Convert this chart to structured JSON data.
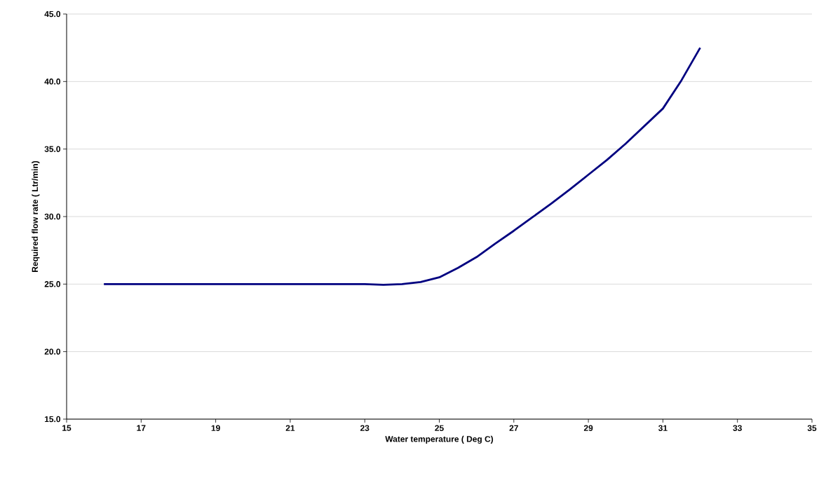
{
  "chart_data": {
    "type": "line",
    "xlabel": "Water temperature ( Deg C)",
    "ylabel": "Required flow rate ( Ltr/min)",
    "x": [
      16,
      17,
      18,
      19,
      20,
      21,
      22,
      23,
      23.5,
      24,
      24.5,
      25,
      25.5,
      26,
      26.5,
      27,
      27.5,
      28,
      28.5,
      29,
      29.5,
      30,
      30.5,
      31,
      31.5,
      32
    ],
    "series": [
      {
        "color": "#000080",
        "values": [
          25,
          25,
          25,
          25,
          25,
          25,
          25,
          25,
          24.95,
          25.0,
          25.15,
          25.5,
          26.2,
          27.0,
          28.0,
          28.95,
          29.95,
          30.95,
          32.0,
          33.1,
          34.2,
          35.4,
          36.7,
          38.0,
          40.1,
          42.5
        ]
      }
    ],
    "xlim": [
      15,
      35
    ],
    "xticks": [
      15,
      17,
      19,
      21,
      23,
      25,
      27,
      29,
      31,
      33,
      35
    ],
    "ylim": [
      15,
      45
    ],
    "yticks": [
      {
        "value": 15,
        "label": "15.0"
      },
      {
        "value": 20,
        "label": "20.0"
      },
      {
        "value": 25,
        "label": "25.0"
      },
      {
        "value": 30,
        "label": "30.0"
      },
      {
        "value": 35,
        "label": "35.0"
      },
      {
        "value": 40,
        "label": "40.0"
      },
      {
        "value": 45,
        "label": "45.0"
      }
    ],
    "grid": "y",
    "marker": "none",
    "line_style": "solid"
  }
}
